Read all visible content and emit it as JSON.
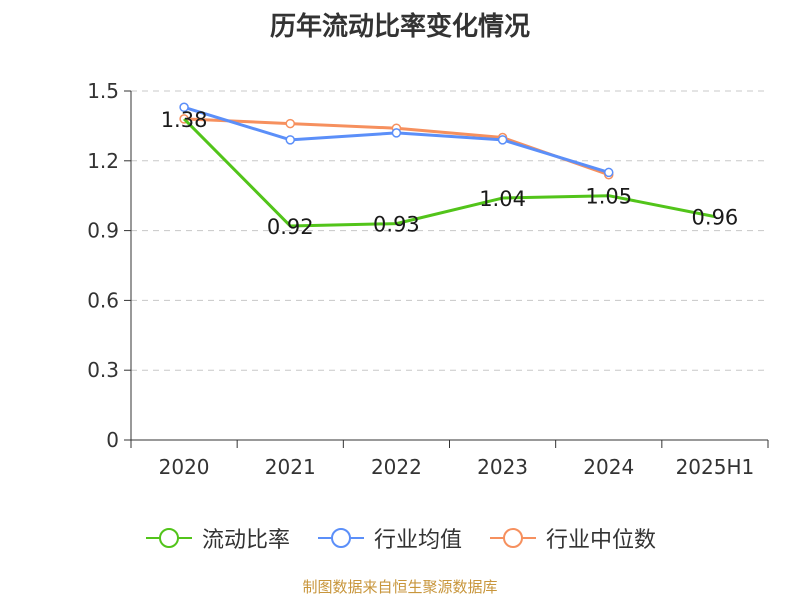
{
  "title": "历年流动比率变化情况",
  "source": "制图数据来自恒生聚源数据库",
  "chart_data": {
    "type": "line",
    "categories": [
      "2020",
      "2021",
      "2022",
      "2023",
      "2024",
      "2025H1"
    ],
    "ylim": [
      0,
      1.5
    ],
    "yticks": [
      "0",
      "0.3",
      "0.6",
      "0.9",
      "1.2",
      "1.5"
    ],
    "grid": true,
    "legend_position": "bottom",
    "series": [
      {
        "name": "流动比率",
        "color": "#52c41a",
        "values": [
          1.38,
          0.92,
          0.93,
          1.04,
          1.05,
          0.96
        ],
        "labels": [
          "1.38",
          "0.92",
          "0.93",
          "1.04",
          "1.05",
          "0.96"
        ]
      },
      {
        "name": "行业均值",
        "color": "#5b8ff9",
        "values": [
          1.43,
          1.29,
          1.32,
          1.29,
          1.15,
          null
        ]
      },
      {
        "name": "行业中位数",
        "color": "#f6905e",
        "values": [
          1.38,
          1.36,
          1.34,
          1.3,
          1.14,
          null
        ]
      }
    ]
  }
}
